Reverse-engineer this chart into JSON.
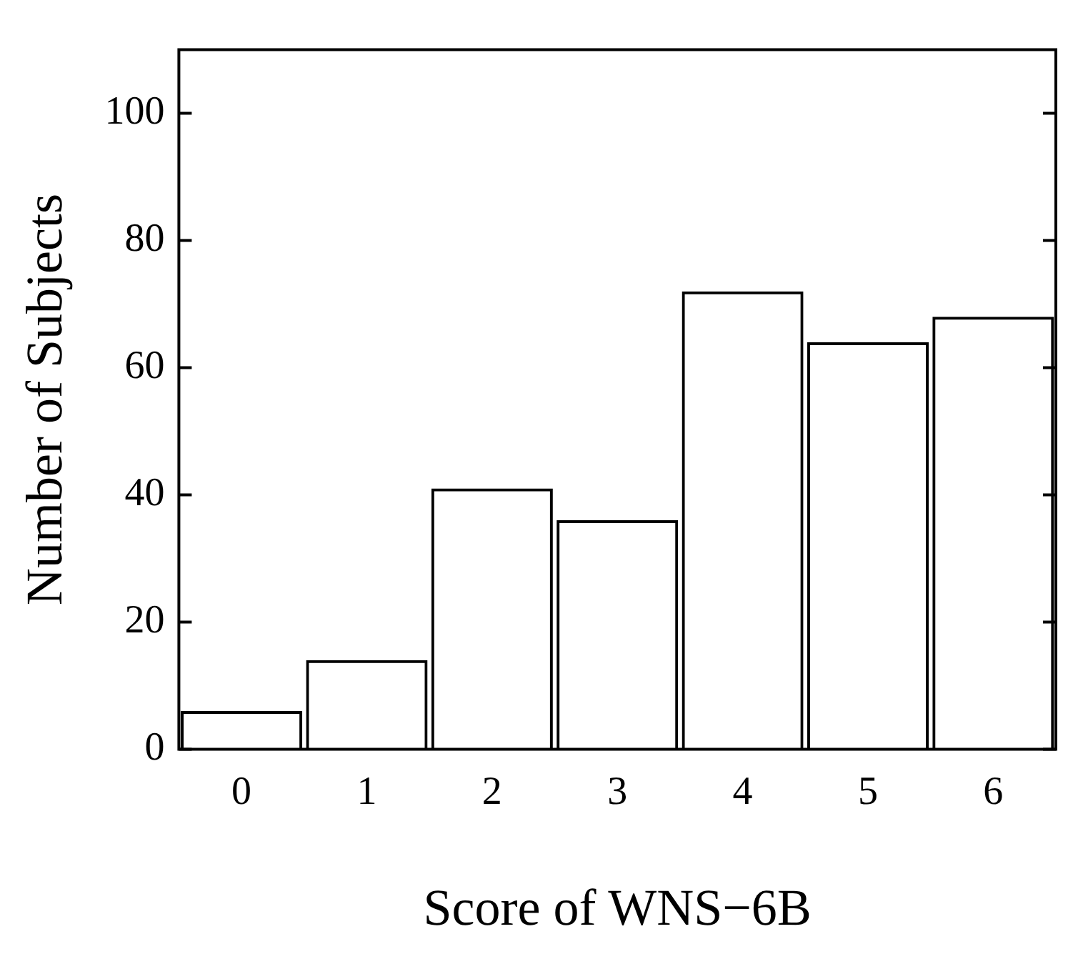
{
  "chart_data": {
    "type": "bar",
    "xlabel": "Score of WNS−6B",
    "ylabel": "Number of Subjects",
    "categories": [
      "0",
      "1",
      "2",
      "3",
      "4",
      "5",
      "6"
    ],
    "values": [
      6,
      14,
      41,
      36,
      72,
      64,
      68
    ],
    "color": "#000000",
    "ylim": [
      0,
      110
    ],
    "yticks": [
      0,
      20,
      40,
      60,
      80,
      100
    ],
    "grid": false,
    "legend": false
  }
}
